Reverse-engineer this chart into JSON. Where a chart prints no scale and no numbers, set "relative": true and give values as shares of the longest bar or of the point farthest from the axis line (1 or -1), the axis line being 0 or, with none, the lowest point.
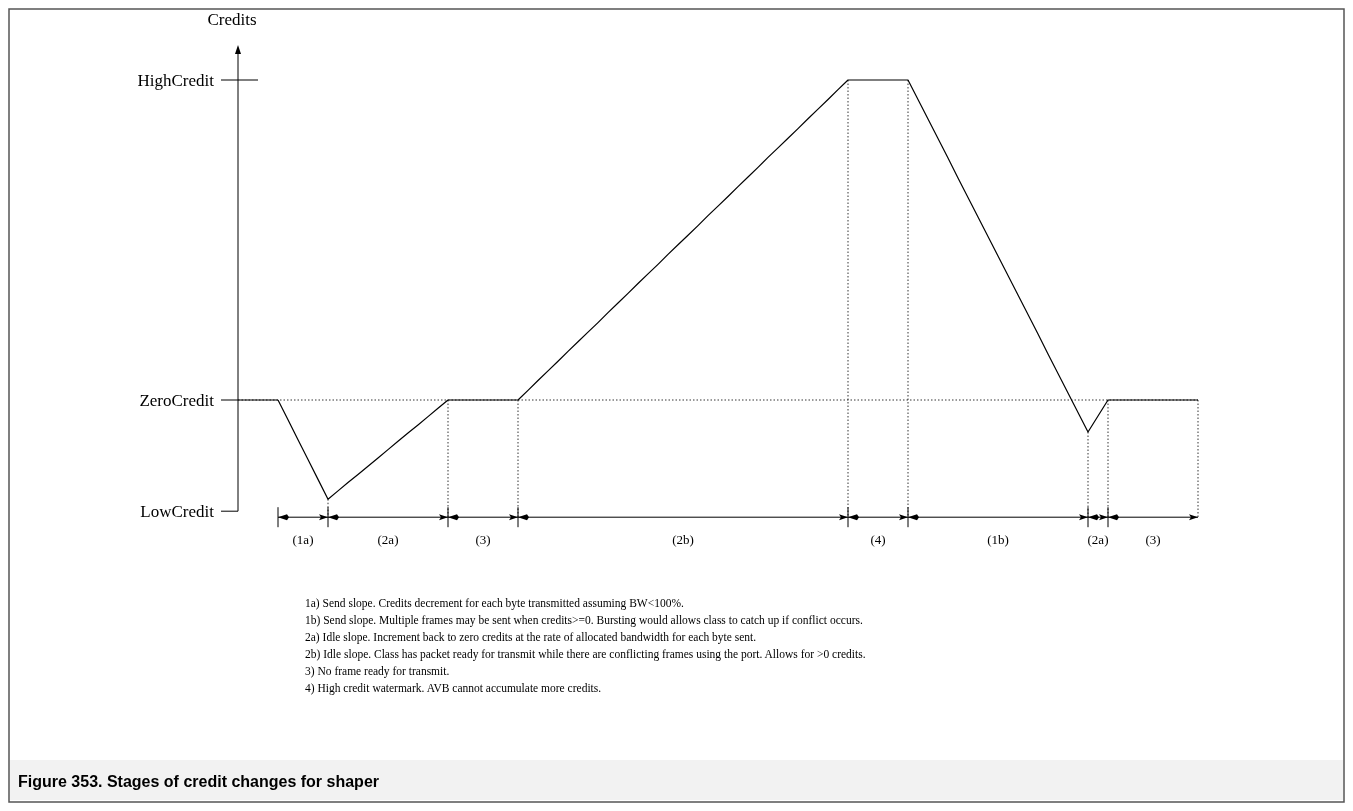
{
  "chart_data": {
    "type": "line",
    "title": "Figure 353. Stages of credit changes for shaper",
    "ylabel": "Credits",
    "relative": true,
    "categories": [
      null,
      null,
      null,
      null,
      null,
      null,
      null,
      null,
      null,
      null,
      null,
      null,
      null,
      null,
      null,
      null,
      null,
      null,
      null,
      null,
      null,
      null,
      null,
      null,
      null,
      null,
      null,
      null,
      null,
      null,
      null,
      null,
      null,
      null,
      null,
      null,
      null,
      null,
      null,
      null,
      null,
      null,
      null,
      null,
      null,
      null,
      null,
      null,
      null,
      null,
      null,
      null,
      null,
      null,
      null,
      null,
      null,
      null,
      null,
      null,
      null,
      null,
      null,
      null,
      null,
      null,
      null,
      null,
      null,
      null,
      null,
      null,
      null,
      null,
      null,
      null,
      null,
      null,
      null,
      null,
      null,
      null,
      null,
      null,
      null,
      null,
      null,
      null,
      null,
      null,
      null,
      null,
      null
    ],
    "series": [
      {
        "color": "#000000",
        "values": [
          0,
          -0.062,
          -0.124,
          -0.186,
          -0.248,
          -0.31,
          -0.284,
          -0.258,
          -0.233,
          -0.207,
          -0.181,
          -0.155,
          -0.129,
          -0.103,
          -0.078,
          -0.052,
          -0.026,
          0,
          0,
          0,
          0,
          0,
          0,
          0,
          0,
          0.03,
          0.061,
          0.091,
          0.121,
          0.152,
          0.182,
          0.212,
          0.242,
          0.273,
          0.303,
          0.333,
          0.364,
          0.394,
          0.424,
          0.455,
          0.485,
          0.515,
          0.545,
          0.576,
          0.606,
          0.636,
          0.667,
          0.697,
          0.727,
          0.758,
          0.788,
          0.818,
          0.848,
          0.879,
          0.909,
          0.939,
          0.97,
          1,
          1,
          1,
          1,
          1,
          1,
          1,
          0.939,
          0.878,
          0.817,
          0.756,
          0.694,
          0.633,
          0.572,
          0.511,
          0.45,
          0.389,
          0.328,
          0.267,
          0.206,
          0.144,
          0.083,
          0.022,
          -0.039,
          -0.1,
          -0.05,
          0,
          0,
          0,
          0,
          0,
          0,
          0,
          0,
          0,
          0
        ]
      }
    ],
    "marker": "none",
    "line_style": "solid",
    "ref_lines": [
      {
        "axis": "y",
        "value": 0,
        "label": "ZeroCredit",
        "line_style": "dotted",
        "color": "#000000"
      }
    ],
    "annotations": [
      "HighCredit",
      "LowCredit",
      "(1a)",
      "(2a)",
      "(3)",
      "(2b)",
      "(4)",
      "(1b)",
      "(2a)",
      "(3)",
      "1a) Send slope. Credits decrement for each byte transmitted assuming BW<100%.",
      "1b) Send slope. Multiple frames may be sent when credits>=0. Bursting would allows class to catch up if conflict occurs.",
      "2a) Idle slope. Increment back to zero credits at the rate of allocated bandwidth for each byte sent.",
      "2b) Idle slope. Class has packet ready for transmit while there are conflicting frames using the port. Allows for >0 credits.",
      "3) No frame ready for transmit.",
      "4) High credit watermark. AVB cannot accumulate more credits."
    ]
  }
}
